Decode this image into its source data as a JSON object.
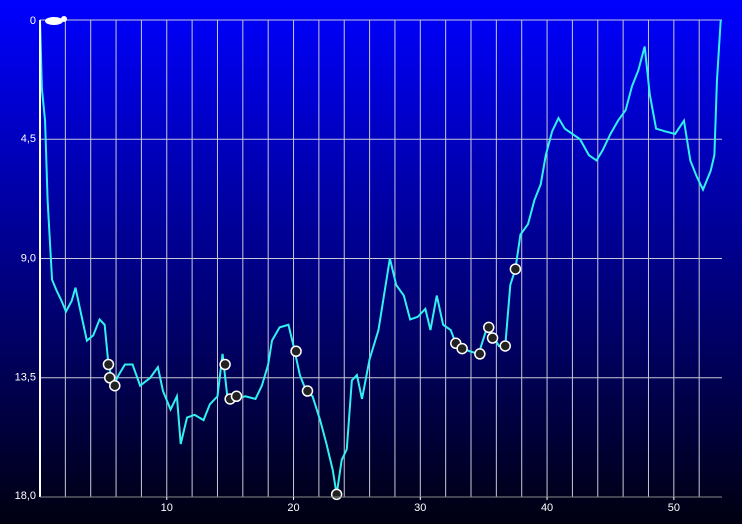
{
  "chart_data": {
    "type": "line",
    "x": [
      0,
      0.15,
      0.4,
      0.6,
      0.95,
      1.3,
      1.7,
      2.05,
      2.5,
      2.8,
      3.2,
      3.7,
      4.2,
      4.7,
      5.1,
      5.4,
      5.8,
      6.2,
      6.7,
      7.3,
      7.9,
      8.7,
      9.3,
      9.7,
      10.3,
      10.8,
      11.1,
      11.6,
      12.2,
      12.9,
      13.4,
      14.0,
      14.4,
      14.8,
      15.4,
      16.2,
      17.0,
      17.5,
      18.0,
      18.3,
      18.9,
      19.6,
      20.0,
      20.5,
      21.0,
      21.5,
      22.1,
      22.6,
      23.1,
      23.4,
      23.8,
      24.2,
      24.6,
      25.0,
      25.4,
      26.0,
      26.7,
      27.2,
      27.6,
      28.1,
      28.7,
      29.2,
      29.8,
      30.4,
      30.8,
      31.3,
      31.8,
      32.4,
      32.8,
      33.3,
      33.9,
      34.6,
      35.2,
      35.7,
      36.2,
      36.7,
      37.1,
      37.5,
      37.9,
      38.5,
      39.0,
      39.5,
      39.9,
      40.4,
      40.9,
      41.4,
      42.0,
      42.6,
      43.3,
      43.9,
      44.4,
      45.0,
      45.6,
      46.2,
      46.7,
      47.2,
      47.7,
      48.1,
      48.6,
      49.3,
      50.1,
      50.8,
      51.3,
      51.8,
      52.3,
      52.9,
      53.2,
      53.4,
      53.7
    ],
    "series": [
      {
        "color": "#33f0f0",
        "values": [
          0,
          2.6,
          3.8,
          6.8,
          9.8,
          10.2,
          10.6,
          11.0,
          10.6,
          10.1,
          11.0,
          12.1,
          11.9,
          11.3,
          11.5,
          13.0,
          13.8,
          13.4,
          13.0,
          13.0,
          13.8,
          13.5,
          13.1,
          14.0,
          14.7,
          14.2,
          16.0,
          15.0,
          14.9,
          15.1,
          14.5,
          14.2,
          12.6,
          14.3,
          14.3,
          14.2,
          14.3,
          13.8,
          13.0,
          12.1,
          11.6,
          11.5,
          12.3,
          13.4,
          14.0,
          14.2,
          15.1,
          16.0,
          17.0,
          17.9,
          16.6,
          16.2,
          13.6,
          13.4,
          14.3,
          12.8,
          11.7,
          10.2,
          9.0,
          10.0,
          10.4,
          11.3,
          11.2,
          10.9,
          11.7,
          10.4,
          11.5,
          11.7,
          12.2,
          12.4,
          12.5,
          12.6,
          11.7,
          11.9,
          12.3,
          12.3,
          10.0,
          9.4,
          8.1,
          7.7,
          6.8,
          6.2,
          5.1,
          4.2,
          3.7,
          4.1,
          4.3,
          4.5,
          5.1,
          5.3,
          4.9,
          4.3,
          3.8,
          3.4,
          2.5,
          1.9,
          1.0,
          2.8,
          4.1,
          4.2,
          4.3,
          3.8,
          5.3,
          5.9,
          6.4,
          5.7,
          5.1,
          2.3,
          0
        ]
      }
    ],
    "markers": {
      "x": [
        5.4,
        5.5,
        5.9,
        14.6,
        15.0,
        15.5,
        20.2,
        21.1,
        23.4,
        32.8,
        33.3,
        34.7,
        35.4,
        35.7,
        36.7,
        37.5
      ],
      "values": [
        13.0,
        13.5,
        13.8,
        13.0,
        14.3,
        14.2,
        12.5,
        14.0,
        17.9,
        12.2,
        12.4,
        12.6,
        11.6,
        12.0,
        12.3,
        9.4
      ]
    },
    "xlim": [
      0,
      53.8
    ],
    "xticks": [
      10,
      20,
      30,
      40,
      50
    ],
    "xgrid": [
      2,
      4,
      6,
      8,
      10,
      12,
      14,
      16,
      18,
      20,
      22,
      24,
      26,
      28,
      30,
      32,
      34,
      36,
      38,
      40,
      42,
      44,
      46,
      48,
      50,
      52
    ],
    "ylim": [
      0,
      18
    ],
    "y_inverted": true,
    "yticks": [
      0,
      {
        "value": 4.5,
        "label": "4,5"
      },
      {
        "value": 9,
        "label": "9,0"
      },
      {
        "value": 13.5,
        "label": "13,5"
      },
      {
        "value": 18,
        "label": "18,0"
      }
    ],
    "grid": true
  }
}
